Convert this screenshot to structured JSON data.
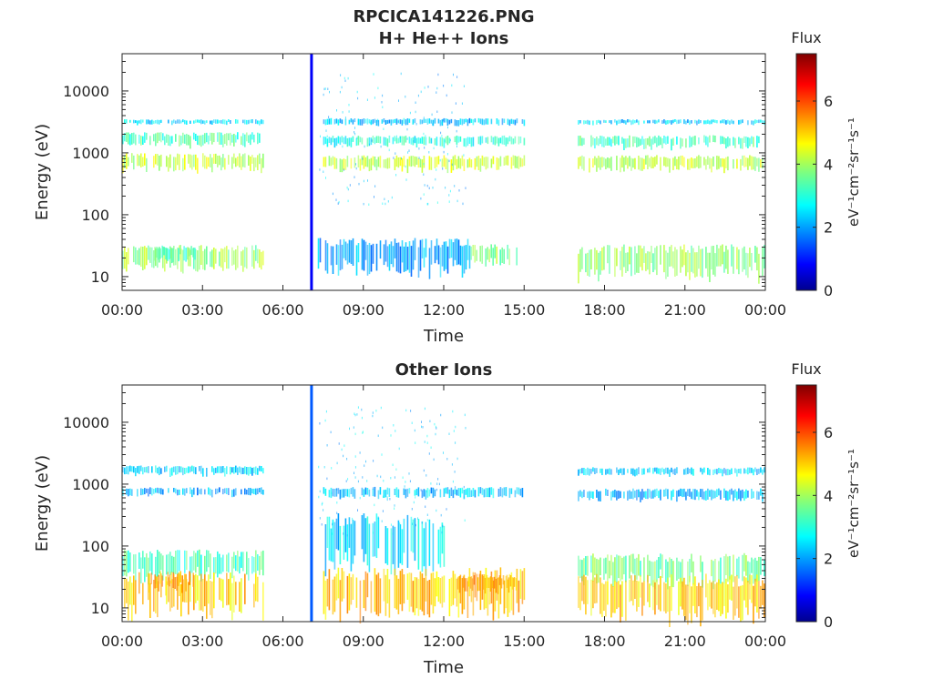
{
  "chart_data": [
    {
      "type": "heatmap",
      "title": "RPCICA141226.PNG",
      "subtitle": "H+ He++ Ions",
      "xlabel": "Time",
      "ylabel": "Energy (eV)",
      "x_ticks": [
        "00:00",
        "03:00",
        "06:00",
        "09:00",
        "12:00",
        "15:00",
        "18:00",
        "21:00",
        "00:00"
      ],
      "x_range_hours": [
        0,
        24
      ],
      "y_scale": "log",
      "y_ticks": [
        "10",
        "100",
        "1000",
        "10000"
      ],
      "y_range": [
        6,
        40000
      ],
      "colorbar": {
        "title": "Flux",
        "label": "eV⁻¹cm⁻²sr⁻¹s⁻¹",
        "ticks": [
          "0",
          "2",
          "4",
          "6"
        ],
        "range": [
          0,
          7.5
        ],
        "colormap": "jet"
      },
      "data_gaps_hours": [
        [
          5.3,
          7.0
        ],
        [
          15.0,
          17.0
        ]
      ],
      "bands": [
        {
          "t": [
            0,
            5.3
          ],
          "e": [
            1300,
            2000
          ],
          "v": 3.3
        },
        {
          "t": [
            0,
            5.3
          ],
          "e": [
            2900,
            3400
          ],
          "v": 2.5
        },
        {
          "t": [
            0,
            5.3
          ],
          "e": [
            520,
            900
          ],
          "v": 4.2
        },
        {
          "t": [
            0,
            5.3
          ],
          "e": [
            12,
            28
          ],
          "v": 3.9
        },
        {
          "t": [
            1.2,
            2.7
          ],
          "e": [
            18,
            30
          ],
          "v": 3.3
        },
        {
          "t": [
            7.5,
            15.0
          ],
          "e": [
            2800,
            3500
          ],
          "v": 2.4
        },
        {
          "t": [
            7.5,
            15.0
          ],
          "e": [
            1300,
            1800
          ],
          "v": 3.0
        },
        {
          "t": [
            7.5,
            15.0
          ],
          "e": [
            520,
            850
          ],
          "v": 4.3
        },
        {
          "t": [
            7.3,
            13.0
          ],
          "e": [
            12,
            35
          ],
          "v": 2.2
        },
        {
          "t": [
            13.0,
            14.7
          ],
          "e": [
            16,
            30
          ],
          "v": 3.8
        },
        {
          "t": [
            17.0,
            24.0
          ],
          "e": [
            2900,
            3400
          ],
          "v": 2.5
        },
        {
          "t": [
            17.0,
            24.0
          ],
          "e": [
            1200,
            1800
          ],
          "v": 3.3
        },
        {
          "t": [
            17.0,
            24.0
          ],
          "e": [
            520,
            850
          ],
          "v": 4.2
        },
        {
          "t": [
            17.0,
            24.0
          ],
          "e": [
            10,
            28
          ],
          "v": 3.9
        }
      ],
      "spike": {
        "t": 7.05,
        "v": 0.9
      }
    },
    {
      "type": "heatmap",
      "title": "Other Ions",
      "xlabel": "Time",
      "ylabel": "Energy (eV)",
      "x_ticks": [
        "00:00",
        "03:00",
        "06:00",
        "09:00",
        "12:00",
        "15:00",
        "18:00",
        "21:00",
        "00:00"
      ],
      "x_range_hours": [
        0,
        24
      ],
      "y_scale": "log",
      "y_ticks": [
        "10",
        "100",
        "1000",
        "10000"
      ],
      "y_range": [
        6,
        40000
      ],
      "colorbar": {
        "title": "Flux",
        "label": "eV⁻¹cm⁻²sr⁻¹s⁻¹",
        "ticks": [
          "0",
          "2",
          "4",
          "6"
        ],
        "range": [
          0,
          7.5
        ],
        "colormap": "jet"
      },
      "data_gaps_hours": [
        [
          5.3,
          7.0
        ],
        [
          15.0,
          17.0
        ]
      ],
      "bands": [
        {
          "t": [
            0,
            5.3
          ],
          "e": [
            1400,
            1900
          ],
          "v": 2.5
        },
        {
          "t": [
            0,
            5.3
          ],
          "e": [
            650,
            850
          ],
          "v": 2.2
        },
        {
          "t": [
            0,
            5.3
          ],
          "e": [
            30,
            75
          ],
          "v": 3.3
        },
        {
          "t": [
            0,
            5.3
          ],
          "e": [
            8,
            30
          ],
          "v": 5.0
        },
        {
          "t": [
            1.0,
            2.7
          ],
          "e": [
            18,
            35
          ],
          "v": 5.3
        },
        {
          "t": [
            7.5,
            15.0
          ],
          "e": [
            600,
            850
          ],
          "v": 2.4
        },
        {
          "t": [
            7.5,
            12.0
          ],
          "e": [
            40,
            250
          ],
          "v": 2.6
        },
        {
          "t": [
            7.5,
            15.0
          ],
          "e": [
            8,
            35
          ],
          "v": 5.1
        },
        {
          "t": [
            12.5,
            14.7
          ],
          "e": [
            18,
            32
          ],
          "v": 5.3
        },
        {
          "t": [
            17.0,
            24.0
          ],
          "e": [
            1400,
            1800
          ],
          "v": 2.4
        },
        {
          "t": [
            17.0,
            24.0
          ],
          "e": [
            550,
            800
          ],
          "v": 2.3
        },
        {
          "t": [
            17.0,
            24.0
          ],
          "e": [
            25,
            65
          ],
          "v": 3.6
        },
        {
          "t": [
            17.0,
            24.0
          ],
          "e": [
            7,
            28
          ],
          "v": 5.0
        }
      ],
      "spike": {
        "t": 7.05,
        "v": 1.6
      }
    }
  ]
}
